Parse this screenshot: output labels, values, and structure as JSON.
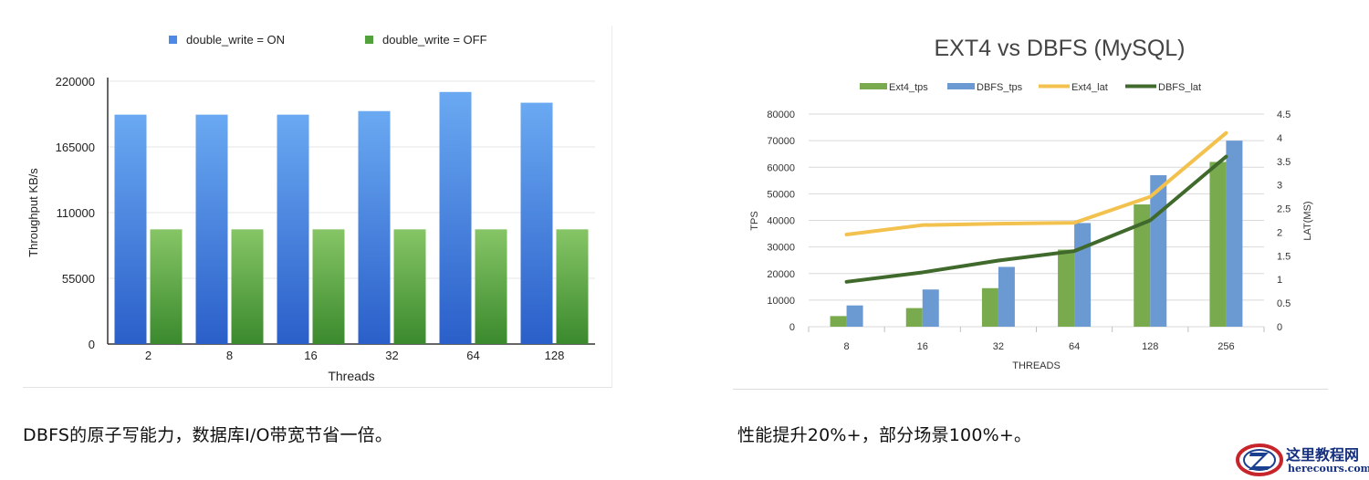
{
  "chart_data": [
    {
      "type": "bar",
      "title": "",
      "xlabel": "Threads",
      "ylabel": "Throughput KB/s",
      "categories": [
        "2",
        "8",
        "16",
        "32",
        "64",
        "128"
      ],
      "y_ticks": [
        "0",
        "55000",
        "110000",
        "165000",
        "220000"
      ],
      "ylim": [
        0,
        220000
      ],
      "grid": true,
      "legend_position": "top-center",
      "series": [
        {
          "name": "double_write = ON",
          "color": "#4d8ae6",
          "values": [
            192000,
            192000,
            192000,
            195000,
            211000,
            202000
          ]
        },
        {
          "name": "double_write = OFF",
          "color": "#52a13d",
          "values": [
            96000,
            96000,
            96000,
            96000,
            96000,
            96000
          ]
        }
      ]
    },
    {
      "type": "bar",
      "title": "EXT4 vs DBFS (MySQL)",
      "xlabel": "THREADS",
      "ylabel": "TPS",
      "y2label": "LAT(MS)",
      "categories": [
        "8",
        "16",
        "32",
        "64",
        "128",
        "256"
      ],
      "y_ticks": [
        "0",
        "10000",
        "20000",
        "30000",
        "40000",
        "50000",
        "60000",
        "70000",
        "80000"
      ],
      "y2_ticks": [
        "0",
        "0.5",
        "1",
        "1.5",
        "2",
        "2.5",
        "3",
        "3.5",
        "4",
        "4.5"
      ],
      "ylim": [
        0,
        80000
      ],
      "y2lim": [
        0,
        4.5
      ],
      "grid": true,
      "legend_position": "top-center",
      "series": [
        {
          "name": "Ext4_tps",
          "kind": "bar",
          "axis": "left",
          "color": "#7aaa4e",
          "values": [
            4000,
            7000,
            14500,
            29000,
            46000,
            62000
          ]
        },
        {
          "name": "DBFS_tps",
          "kind": "bar",
          "axis": "left",
          "color": "#6b9ad2",
          "values": [
            8000,
            14000,
            22500,
            39000,
            57000,
            70000
          ]
        },
        {
          "name": "Ext4_lat",
          "kind": "line",
          "axis": "right",
          "color": "#f2c14e",
          "values": [
            1.95,
            2.15,
            2.18,
            2.2,
            2.75,
            4.1
          ]
        },
        {
          "name": "DBFS_lat",
          "kind": "line",
          "axis": "right",
          "color": "#3f6a2c",
          "values": [
            0.95,
            1.15,
            1.4,
            1.6,
            2.25,
            3.6
          ]
        }
      ]
    }
  ],
  "captions": {
    "left": "DBFS的原子写能力，数据库I/O带宽节省一倍。",
    "right": "性能提升20%+，部分场景100%+。"
  },
  "watermark": {
    "cn": "这里教程网",
    "en": "herecours.com",
    "icon": "z-logo-icon"
  }
}
